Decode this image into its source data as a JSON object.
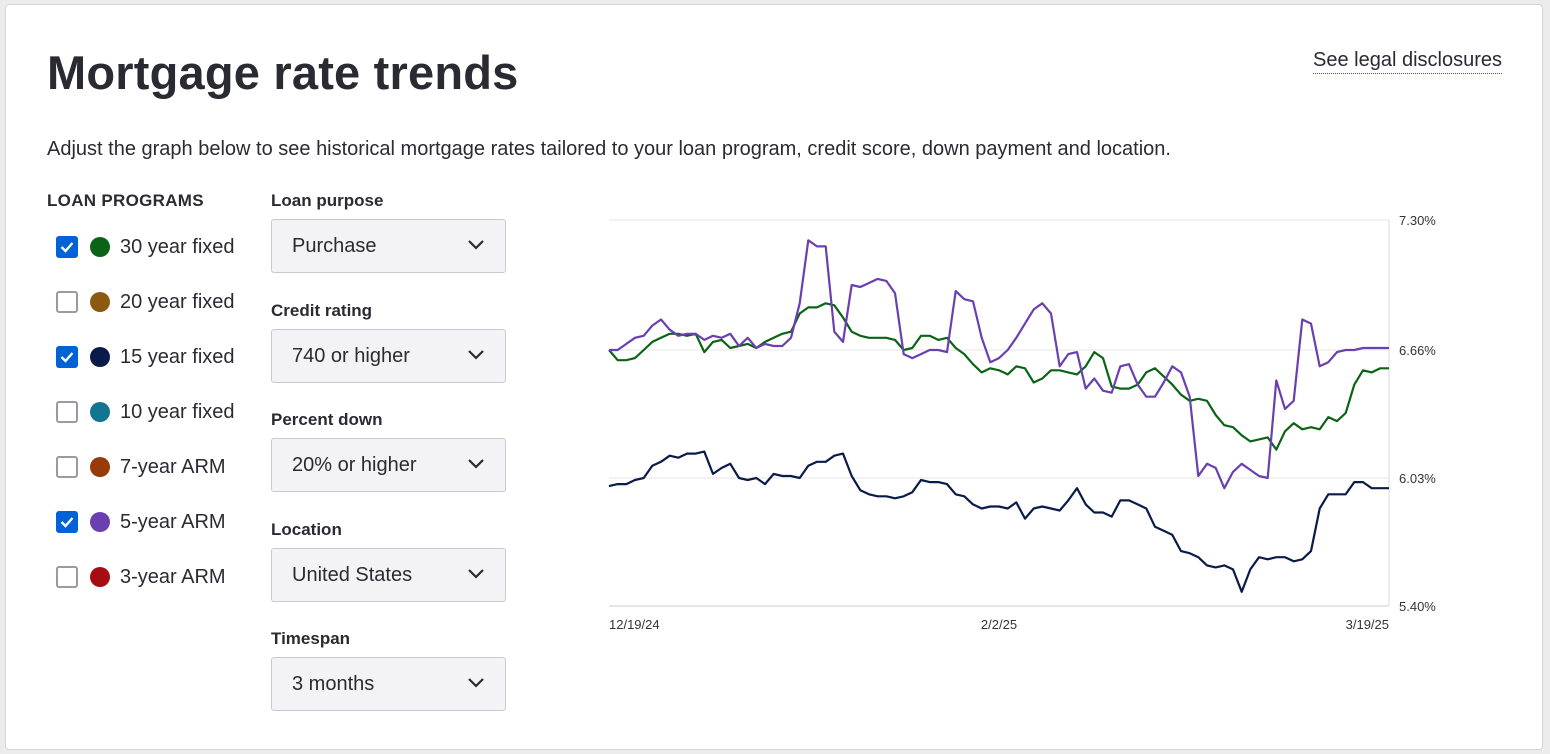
{
  "title": "Mortgage rate trends",
  "legal_link": "See legal disclosures",
  "description": "Adjust the graph below to see historical mortgage rates tailored to your loan program, credit score, down payment and location.",
  "loan_programs": {
    "heading": "LOAN PROGRAMS",
    "items": [
      {
        "label": "30 year fixed",
        "checked": true,
        "color": "#0b6415"
      },
      {
        "label": "20 year fixed",
        "checked": false,
        "color": "#8b5a10"
      },
      {
        "label": "15 year fixed",
        "checked": true,
        "color": "#0a1b4a"
      },
      {
        "label": "10 year fixed",
        "checked": false,
        "color": "#117591"
      },
      {
        "label": "7-year ARM",
        "checked": false,
        "color": "#993a09"
      },
      {
        "label": "5-year ARM",
        "checked": true,
        "color": "#6a3fb0"
      },
      {
        "label": "3-year ARM",
        "checked": false,
        "color": "#a50d10"
      }
    ]
  },
  "filters": {
    "loan_purpose": {
      "label": "Loan purpose",
      "value": "Purchase"
    },
    "credit_rating": {
      "label": "Credit rating",
      "value": "740 or higher"
    },
    "percent_down": {
      "label": "Percent down",
      "value": "20% or higher"
    },
    "location": {
      "label": "Location",
      "value": "United States"
    },
    "timespan": {
      "label": "Timespan",
      "value": "3 months"
    }
  },
  "chart_data": {
    "type": "line",
    "x_tick_labels": [
      "12/19/24",
      "2/2/25",
      "3/19/25"
    ],
    "y_tick_labels": [
      "7.30%",
      "6.66%",
      "6.03%",
      "5.40%"
    ],
    "ylim": [
      5.4,
      7.3
    ],
    "xlim": [
      0,
      90
    ],
    "grid": true,
    "series": [
      {
        "name": "30 year fixed",
        "color": "#0b6415",
        "x": [
          0,
          1,
          2,
          3,
          4,
          5,
          6,
          7,
          8,
          9,
          10,
          11,
          12,
          13,
          14,
          15,
          16,
          17,
          18,
          19,
          20,
          21,
          22,
          23,
          24,
          25,
          26,
          27,
          28,
          29,
          30,
          31,
          32,
          33,
          34,
          35,
          36,
          37,
          38,
          39,
          40,
          41,
          42,
          43,
          44,
          45,
          46,
          47,
          48,
          49,
          50,
          51,
          52,
          53,
          54,
          55,
          56,
          57,
          58,
          59,
          60,
          61,
          62,
          63,
          64,
          65,
          66,
          67,
          68,
          69,
          70,
          71,
          72,
          73,
          74,
          75,
          76,
          77,
          78,
          79,
          80,
          81,
          82,
          83,
          84,
          85,
          86,
          87,
          88,
          89,
          90
        ],
        "values": [
          6.66,
          6.61,
          6.61,
          6.62,
          6.66,
          6.7,
          6.72,
          6.74,
          6.74,
          6.73,
          6.74,
          6.65,
          6.7,
          6.71,
          6.67,
          6.68,
          6.69,
          6.67,
          6.7,
          6.72,
          6.74,
          6.75,
          6.84,
          6.87,
          6.87,
          6.89,
          6.88,
          6.82,
          6.75,
          6.73,
          6.72,
          6.72,
          6.72,
          6.71,
          6.66,
          6.67,
          6.73,
          6.73,
          6.71,
          6.72,
          6.67,
          6.64,
          6.59,
          6.55,
          6.57,
          6.56,
          6.54,
          6.58,
          6.57,
          6.5,
          6.52,
          6.56,
          6.56,
          6.55,
          6.54,
          6.58,
          6.65,
          6.62,
          6.48,
          6.47,
          6.47,
          6.49,
          6.55,
          6.57,
          6.53,
          6.49,
          6.44,
          6.41,
          6.42,
          6.41,
          6.34,
          6.29,
          6.28,
          6.24,
          6.21,
          6.22,
          6.23,
          6.17,
          6.26,
          6.3,
          6.27,
          6.28,
          6.27,
          6.33,
          6.31,
          6.35,
          6.49,
          6.56,
          6.55,
          6.57,
          6.57
        ]
      },
      {
        "name": "15 year fixed",
        "color": "#0a1b4a",
        "x": [
          0,
          1,
          2,
          3,
          4,
          5,
          6,
          7,
          8,
          9,
          10,
          11,
          12,
          13,
          14,
          15,
          16,
          17,
          18,
          19,
          20,
          21,
          22,
          23,
          24,
          25,
          26,
          27,
          28,
          29,
          30,
          31,
          32,
          33,
          34,
          35,
          36,
          37,
          38,
          39,
          40,
          41,
          42,
          43,
          44,
          45,
          46,
          47,
          48,
          49,
          50,
          51,
          52,
          53,
          54,
          55,
          56,
          57,
          58,
          59,
          60,
          61,
          62,
          63,
          64,
          65,
          66,
          67,
          68,
          69,
          70,
          71,
          72,
          73,
          74,
          75,
          76,
          77,
          78,
          79,
          80,
          81,
          82,
          83,
          84,
          85,
          86,
          87,
          88,
          89,
          90
        ],
        "values": [
          5.99,
          6.0,
          6.0,
          6.02,
          6.03,
          6.09,
          6.11,
          6.14,
          6.13,
          6.15,
          6.15,
          6.16,
          6.05,
          6.08,
          6.1,
          6.03,
          6.02,
          6.03,
          6.0,
          6.05,
          6.04,
          6.04,
          6.03,
          6.09,
          6.11,
          6.11,
          6.14,
          6.15,
          6.04,
          5.97,
          5.95,
          5.94,
          5.94,
          5.93,
          5.94,
          5.96,
          6.02,
          6.01,
          6.01,
          6.0,
          5.95,
          5.94,
          5.9,
          5.88,
          5.89,
          5.89,
          5.88,
          5.91,
          5.83,
          5.88,
          5.89,
          5.88,
          5.87,
          5.92,
          5.98,
          5.9,
          5.86,
          5.86,
          5.84,
          5.92,
          5.92,
          5.9,
          5.88,
          5.79,
          5.77,
          5.75,
          5.67,
          5.66,
          5.64,
          5.6,
          5.59,
          5.6,
          5.58,
          5.47,
          5.58,
          5.64,
          5.63,
          5.64,
          5.64,
          5.62,
          5.63,
          5.67,
          5.88,
          5.95,
          5.95,
          5.95,
          6.01,
          6.01,
          5.98,
          5.98,
          5.98
        ]
      },
      {
        "name": "5-year ARM",
        "color": "#6a3fb0",
        "x": [
          0,
          1,
          2,
          3,
          4,
          5,
          6,
          7,
          8,
          9,
          10,
          11,
          12,
          13,
          14,
          15,
          16,
          17,
          18,
          19,
          20,
          21,
          22,
          23,
          24,
          25,
          26,
          27,
          28,
          29,
          30,
          31,
          32,
          33,
          34,
          35,
          36,
          37,
          38,
          39,
          40,
          41,
          42,
          43,
          44,
          45,
          46,
          47,
          48,
          49,
          50,
          51,
          52,
          53,
          54,
          55,
          56,
          57,
          58,
          59,
          60,
          61,
          62,
          63,
          64,
          65,
          66,
          67,
          68,
          69,
          70,
          71,
          72,
          73,
          74,
          75,
          76,
          77,
          78,
          79,
          80,
          81,
          82,
          83,
          84,
          85,
          86,
          87,
          88,
          89,
          90
        ],
        "values": [
          6.66,
          6.66,
          6.69,
          6.72,
          6.73,
          6.78,
          6.81,
          6.76,
          6.73,
          6.74,
          6.74,
          6.71,
          6.73,
          6.72,
          6.74,
          6.68,
          6.72,
          6.67,
          6.69,
          6.68,
          6.68,
          6.72,
          6.89,
          7.2,
          7.17,
          7.17,
          6.75,
          6.7,
          6.98,
          6.97,
          6.99,
          7.01,
          7.0,
          6.94,
          6.64,
          6.62,
          6.64,
          6.66,
          6.66,
          6.65,
          6.95,
          6.91,
          6.9,
          6.72,
          6.6,
          6.62,
          6.66,
          6.72,
          6.79,
          6.86,
          6.89,
          6.84,
          6.58,
          6.64,
          6.65,
          6.47,
          6.52,
          6.46,
          6.45,
          6.58,
          6.59,
          6.49,
          6.43,
          6.43,
          6.5,
          6.58,
          6.55,
          6.43,
          6.04,
          6.1,
          6.08,
          5.98,
          6.06,
          6.1,
          6.07,
          6.04,
          6.03,
          6.51,
          6.37,
          6.41,
          6.81,
          6.79,
          6.58,
          6.6,
          6.65,
          6.66,
          6.66,
          6.67,
          6.67,
          6.67,
          6.67
        ]
      }
    ]
  }
}
